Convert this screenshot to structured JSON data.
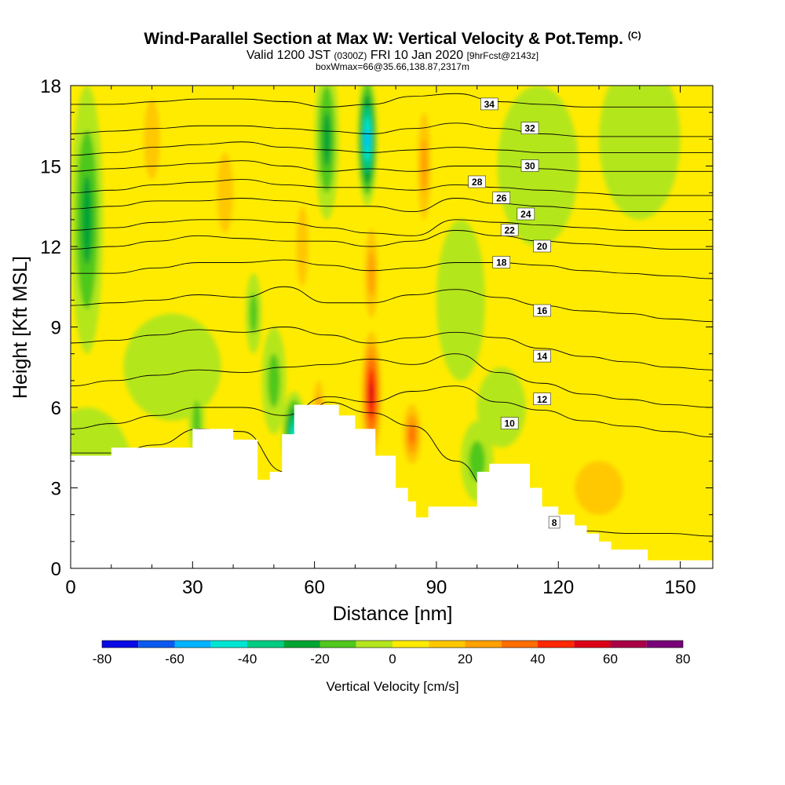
{
  "header": {
    "title": "Wind-Parallel Section at Max W: Vertical Velocity & Pot.Temp.",
    "copyright": "(C)",
    "valid_prefix": "Valid 1200 JST",
    "valid_utc": "(0300Z)",
    "valid_date": "FRI 10 Jan 2020",
    "forecast": "[9hrFcst@2143z]",
    "box_info": "boxWmax=66@35.66,138.87,2317m"
  },
  "chart_data": {
    "type": "heatmap",
    "title": "Wind-Parallel Section at Max W: Vertical Velocity & Pot.Temp.",
    "xlabel": "Distance [nm]",
    "ylabel": "Height [Kft MSL]",
    "xlim": [
      0,
      158
    ],
    "ylim": [
      0,
      18
    ],
    "x_ticks": [
      0,
      30,
      60,
      90,
      120,
      150
    ],
    "y_ticks": [
      0,
      3,
      6,
      9,
      12,
      15,
      18
    ],
    "colorbar": {
      "label": "Vertical Velocity [cm/s]",
      "ticks": [
        -80,
        -60,
        -40,
        -20,
        0,
        20,
        40,
        60,
        80
      ],
      "levels": [
        -80,
        -70,
        -60,
        -50,
        -40,
        -30,
        -20,
        -10,
        0,
        10,
        20,
        30,
        40,
        50,
        60,
        70,
        80
      ],
      "colors": [
        "#0a0ae6",
        "#0a5af0",
        "#00b4ff",
        "#00e6d2",
        "#00cd82",
        "#00a532",
        "#50c81e",
        "#b4e61e",
        "#ffeb00",
        "#ffc800",
        "#ffa000",
        "#ff6e00",
        "#ff2800",
        "#dc0019",
        "#aa0046",
        "#780078"
      ]
    },
    "terrain": [
      [
        0,
        4.2
      ],
      [
        10,
        4.2
      ],
      [
        10,
        4.5
      ],
      [
        30,
        4.5
      ],
      [
        30,
        5.2
      ],
      [
        40,
        5.2
      ],
      [
        40,
        4.8
      ],
      [
        46,
        4.8
      ],
      [
        46,
        3.3
      ],
      [
        49,
        3.3
      ],
      [
        49,
        3.6
      ],
      [
        52,
        3.6
      ],
      [
        52,
        5.0
      ],
      [
        55,
        5.0
      ],
      [
        55,
        6.1
      ],
      [
        66,
        6.1
      ],
      [
        66,
        5.7
      ],
      [
        70,
        5.7
      ],
      [
        70,
        5.2
      ],
      [
        75,
        5.2
      ],
      [
        75,
        4.2
      ],
      [
        80,
        4.2
      ],
      [
        80,
        3.0
      ],
      [
        83,
        3.0
      ],
      [
        83,
        2.5
      ],
      [
        85,
        2.5
      ],
      [
        85,
        1.9
      ],
      [
        88,
        1.9
      ],
      [
        88,
        2.3
      ],
      [
        100,
        2.3
      ],
      [
        100,
        3.6
      ],
      [
        103,
        3.6
      ],
      [
        103,
        3.9
      ],
      [
        113,
        3.9
      ],
      [
        113,
        3.0
      ],
      [
        116,
        3.0
      ],
      [
        116,
        2.3
      ],
      [
        120,
        2.3
      ],
      [
        120,
        2.0
      ],
      [
        124,
        2.0
      ],
      [
        124,
        1.6
      ],
      [
        127,
        1.6
      ],
      [
        127,
        1.3
      ],
      [
        130,
        1.3
      ],
      [
        130,
        1.0
      ],
      [
        133,
        1.0
      ],
      [
        133,
        0.7
      ],
      [
        142,
        0.7
      ],
      [
        142,
        0.3
      ],
      [
        158,
        0.3
      ]
    ],
    "wind_cells": [
      {
        "x": 74,
        "y": 6.5,
        "w": 55,
        "rx": 3,
        "ry": 2.8
      },
      {
        "x": 74,
        "y": 11.0,
        "w": 30,
        "rx": 2.5,
        "ry": 2.5
      },
      {
        "x": 87,
        "y": 15.0,
        "w": 30,
        "rx": 2.5,
        "ry": 3.0
      },
      {
        "x": 84,
        "y": 5.0,
        "w": 32,
        "rx": 3,
        "ry": 1.5
      },
      {
        "x": 73,
        "y": 16.0,
        "w": -55,
        "rx": 2.5,
        "ry": 2.5
      },
      {
        "x": 55,
        "y": 5.0,
        "w": -42,
        "rx": 3,
        "ry": 1.6
      },
      {
        "x": 61,
        "y": 6.0,
        "w": 28,
        "rx": 2,
        "ry": 1.5
      },
      {
        "x": 4,
        "y": 13.0,
        "w": -22,
        "rx": 4,
        "ry": 5.0
      },
      {
        "x": 63,
        "y": 16.0,
        "w": -25,
        "rx": 3,
        "ry": 3.0
      },
      {
        "x": 45,
        "y": 9.5,
        "w": -18,
        "rx": 2,
        "ry": 1.5
      },
      {
        "x": 31,
        "y": 5.5,
        "w": -15,
        "rx": 2,
        "ry": 1.5
      },
      {
        "x": 50,
        "y": 7.0,
        "w": -15,
        "rx": 3,
        "ry": 2.0
      },
      {
        "x": 20,
        "y": 16.0,
        "w": 18,
        "rx": 4,
        "ry": 3.0
      },
      {
        "x": 38,
        "y": 14.0,
        "w": 14,
        "rx": 4,
        "ry": 3.0
      },
      {
        "x": 57,
        "y": 12.0,
        "w": 15,
        "rx": 3,
        "ry": 3.0
      },
      {
        "x": 100,
        "y": 4.0,
        "w": -15,
        "rx": 4,
        "ry": 1.5
      },
      {
        "x": 96,
        "y": 10.0,
        "w": -10,
        "rx": 6,
        "ry": 3.0
      },
      {
        "x": 115,
        "y": 15.0,
        "w": -10,
        "rx": 10,
        "ry": 3.0
      },
      {
        "x": 140,
        "y": 16.0,
        "w": -10,
        "rx": 10,
        "ry": 3.0
      },
      {
        "x": 25,
        "y": 7.5,
        "w": -10,
        "rx": 12,
        "ry": 2.0
      },
      {
        "x": 106,
        "y": 6.0,
        "w": -8,
        "rx": 6,
        "ry": 1.5
      },
      {
        "x": 130,
        "y": 3.0,
        "w": 12,
        "rx": 12,
        "ry": 2.0
      },
      {
        "x": 145,
        "y": 6.0,
        "w": 10,
        "rx": 10,
        "ry": 2.0
      },
      {
        "x": 4,
        "y": 3.0,
        "w": -5,
        "rx": 12,
        "ry": 3.0
      }
    ],
    "theta_contours": [
      {
        "label": "8",
        "ys": [
          4.3,
          4.3,
          4.6,
          5.2,
          5.1,
          3.6,
          6.2,
          5.8,
          5.3,
          4.0,
          2.4,
          1.5,
          1.4,
          1.3,
          1.3,
          1.2
        ],
        "label_at": [
          119,
          1.7
        ]
      },
      {
        "label": "10",
        "ys": [
          5.2,
          5.4,
          5.7,
          6.0,
          6.0,
          5.7,
          6.4,
          6.2,
          6.6,
          6.8,
          6.2,
          5.9,
          5.5,
          5.3,
          5.1,
          4.9
        ],
        "label_at": [
          108,
          5.4
        ]
      },
      {
        "label": "12",
        "ys": [
          6.8,
          7.0,
          7.2,
          7.4,
          7.3,
          7.5,
          7.6,
          7.8,
          7.6,
          8.0,
          7.3,
          6.9,
          6.5,
          6.3,
          6.1,
          6.0
        ],
        "label_at": [
          116,
          6.3
        ]
      },
      {
        "label": "14",
        "ys": [
          8.4,
          8.5,
          8.7,
          8.9,
          8.8,
          9.0,
          8.7,
          8.4,
          8.6,
          8.8,
          8.6,
          8.2,
          7.9,
          7.7,
          7.5,
          7.4
        ],
        "label_at": [
          116,
          7.9
        ]
      },
      {
        "label": "16",
        "ys": [
          9.8,
          9.9,
          10.0,
          10.2,
          10.1,
          10.5,
          9.9,
          9.9,
          10.2,
          10.4,
          10.1,
          9.8,
          9.6,
          9.5,
          9.3,
          9.2
        ],
        "label_at": [
          116,
          9.6
        ]
      },
      {
        "label": "18",
        "ys": [
          11.0,
          11.0,
          11.2,
          11.4,
          11.4,
          11.5,
          11.3,
          11.1,
          11.2,
          11.4,
          11.4,
          11.3,
          11.1,
          11.0,
          10.9,
          10.8
        ],
        "label_at": [
          106,
          11.4
        ]
      },
      {
        "label": "20",
        "ys": [
          11.9,
          12.0,
          12.2,
          12.4,
          12.3,
          12.2,
          12.2,
          12.0,
          12.2,
          12.6,
          12.4,
          12.2,
          12.1,
          12.0,
          11.9,
          11.9
        ],
        "label_at": [
          116,
          12.0
        ]
      },
      {
        "label": "22",
        "ys": [
          12.6,
          12.7,
          12.9,
          13.0,
          13.0,
          12.9,
          12.7,
          12.5,
          12.4,
          13.0,
          12.9,
          12.8,
          12.7,
          12.6,
          12.6,
          12.6
        ],
        "label_at": [
          108,
          12.6
        ]
      },
      {
        "label": "24",
        "ys": [
          13.4,
          13.5,
          13.7,
          13.7,
          13.8,
          13.7,
          13.5,
          13.5,
          13.3,
          13.8,
          13.6,
          13.5,
          13.4,
          13.3,
          13.3,
          13.3
        ],
        "label_at": [
          112,
          13.2
        ]
      },
      {
        "label": "26",
        "ys": [
          14.0,
          14.1,
          14.3,
          14.4,
          14.5,
          14.3,
          14.2,
          14.2,
          14.1,
          14.3,
          14.2,
          14.1,
          14.0,
          13.9,
          13.9,
          13.9
        ],
        "label_at": [
          106,
          13.8
        ]
      },
      {
        "label": "28",
        "ys": [
          14.8,
          14.9,
          15.0,
          15.1,
          15.2,
          15.0,
          14.8,
          14.9,
          14.8,
          15.0,
          15.0,
          14.9,
          14.8,
          14.8,
          14.8,
          14.8
        ],
        "label_at": [
          100,
          14.4
        ]
      },
      {
        "label": "30",
        "ys": [
          15.4,
          15.5,
          15.7,
          15.8,
          15.9,
          15.7,
          15.6,
          15.5,
          15.6,
          15.7,
          15.6,
          15.5,
          15.5,
          15.5,
          15.5,
          15.5
        ],
        "label_at": [
          113,
          15.0
        ]
      },
      {
        "label": "32",
        "ys": [
          16.2,
          16.3,
          16.4,
          16.5,
          16.5,
          16.4,
          16.3,
          16.2,
          16.4,
          16.6,
          16.4,
          16.2,
          16.1,
          16.1,
          16.1,
          16.1
        ],
        "label_at": [
          113,
          16.4
        ]
      },
      {
        "label": "34",
        "ys": [
          17.3,
          17.3,
          17.4,
          17.5,
          17.5,
          17.4,
          17.2,
          17.3,
          17.6,
          17.7,
          17.4,
          17.3,
          17.2,
          17.2,
          17.2,
          17.2
        ],
        "label_at": [
          103,
          17.3
        ]
      }
    ]
  }
}
